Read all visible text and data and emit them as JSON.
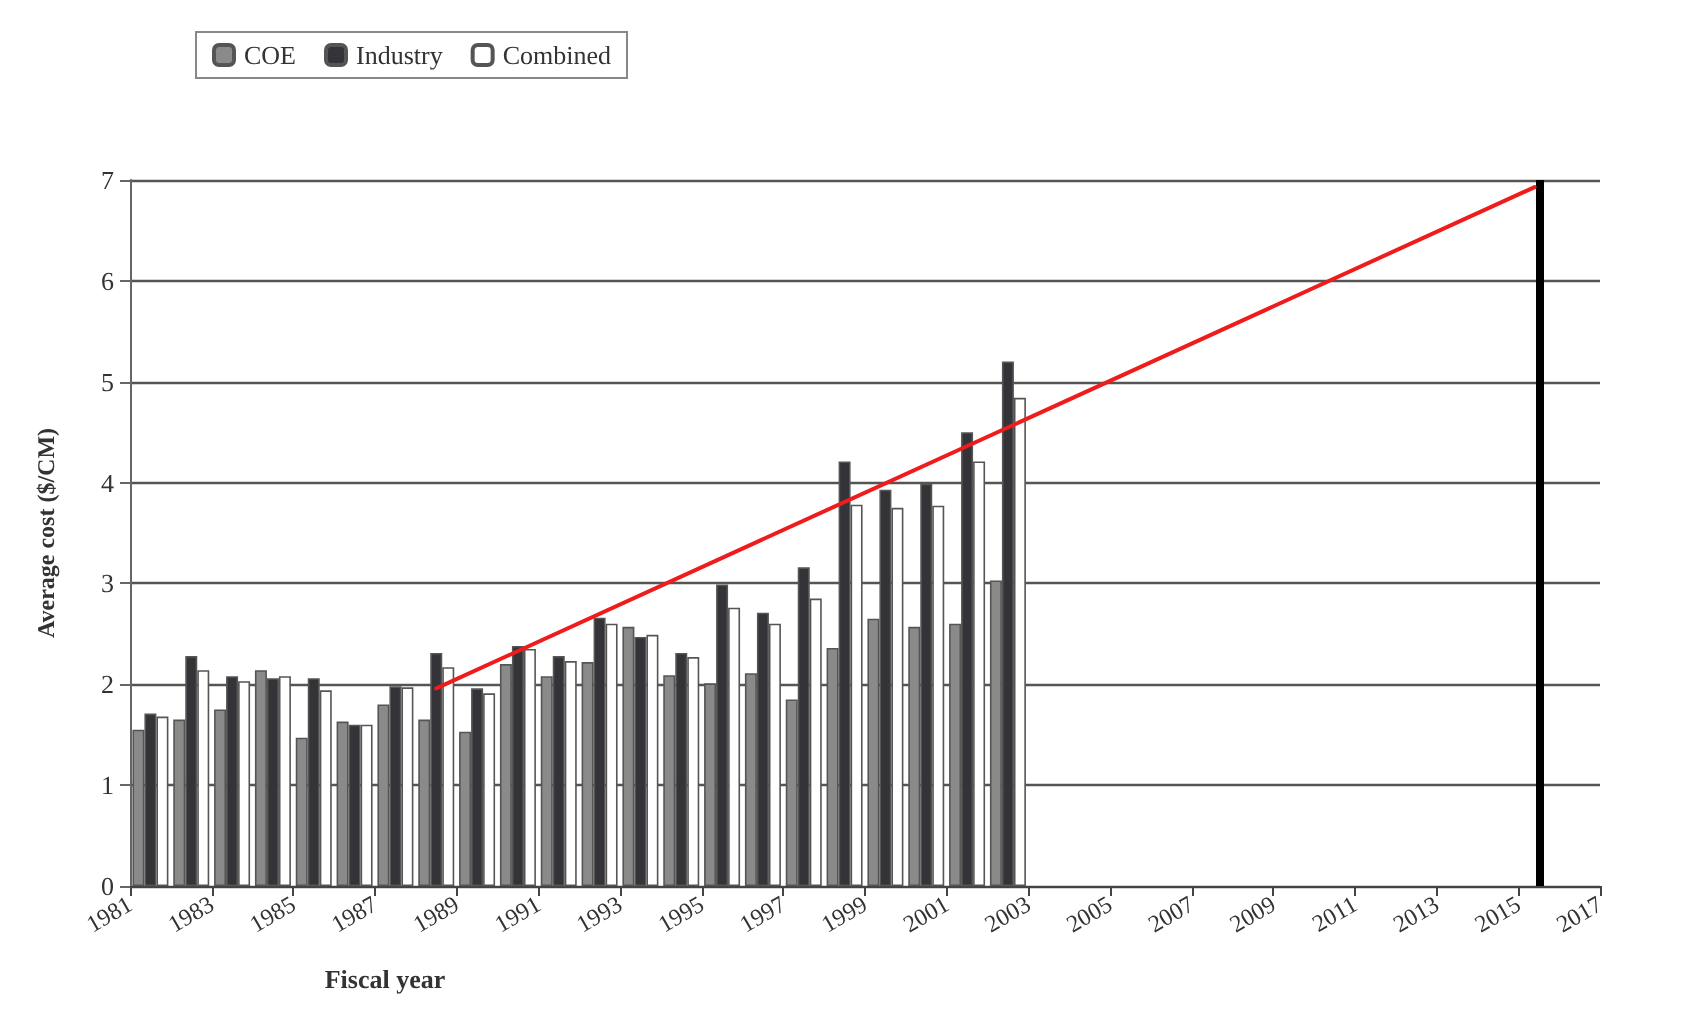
{
  "chart_data": {
    "type": "bar",
    "xlabel": "Fiscal year",
    "ylabel": "Average cost ($/CM)",
    "x": [
      1981.5,
      1982.5,
      1983.5,
      1984.5,
      1985.5,
      1986.5,
      1987.5,
      1988.5,
      1989.5,
      1990.5,
      1991.5,
      1992.5,
      1993.5,
      1994.5,
      1995.5,
      1996.5,
      1997.5,
      1998.5,
      1999.5,
      2000.5,
      2001.5,
      2002.5
    ],
    "series": [
      {
        "name": "COE",
        "color": "#8a8a8a",
        "values": [
          1.55,
          1.65,
          1.75,
          2.14,
          1.47,
          1.63,
          1.8,
          1.65,
          1.53,
          2.2,
          2.08,
          2.22,
          2.57,
          2.09,
          2.01,
          2.11,
          1.85,
          2.36,
          2.65,
          2.57,
          2.6,
          3.03
        ]
      },
      {
        "name": "Industry",
        "color": "#333338",
        "values": [
          1.71,
          2.28,
          2.08,
          2.06,
          2.06,
          1.6,
          1.98,
          2.31,
          1.96,
          2.38,
          2.28,
          2.66,
          2.47,
          2.31,
          2.99,
          2.71,
          3.16,
          4.21,
          3.93,
          3.99,
          4.5,
          5.2
        ]
      },
      {
        "name": "Combined",
        "color": "#ffffff",
        "values": [
          1.68,
          2.14,
          2.03,
          2.08,
          1.94,
          1.6,
          1.97,
          2.17,
          1.91,
          2.35,
          2.23,
          2.6,
          2.49,
          2.27,
          2.76,
          2.6,
          2.85,
          3.78,
          3.75,
          3.77,
          4.21,
          4.84
        ]
      },
      {
        "type": "line",
        "color": "#ee1c1c",
        "x": [
          1988.5,
          2015.4
        ],
        "values": [
          1.96,
          6.93
        ]
      }
    ],
    "ref_lines": [
      {
        "axis": "x",
        "value": 2015.5,
        "color": "#000000"
      }
    ],
    "xlim": [
      1981,
      2017
    ],
    "xticks": [
      1981,
      1983,
      1985,
      1987,
      1989,
      1991,
      1993,
      1995,
      1997,
      1999,
      2001,
      2003,
      2005,
      2007,
      2009,
      2011,
      2013,
      2015,
      2017
    ],
    "ylim": [
      0,
      7
    ],
    "yticks": [
      0,
      1,
      2,
      3,
      4,
      5,
      6,
      7
    ],
    "grid": "y",
    "legend": "top left",
    "marker": "none",
    "line_style": "solid"
  }
}
